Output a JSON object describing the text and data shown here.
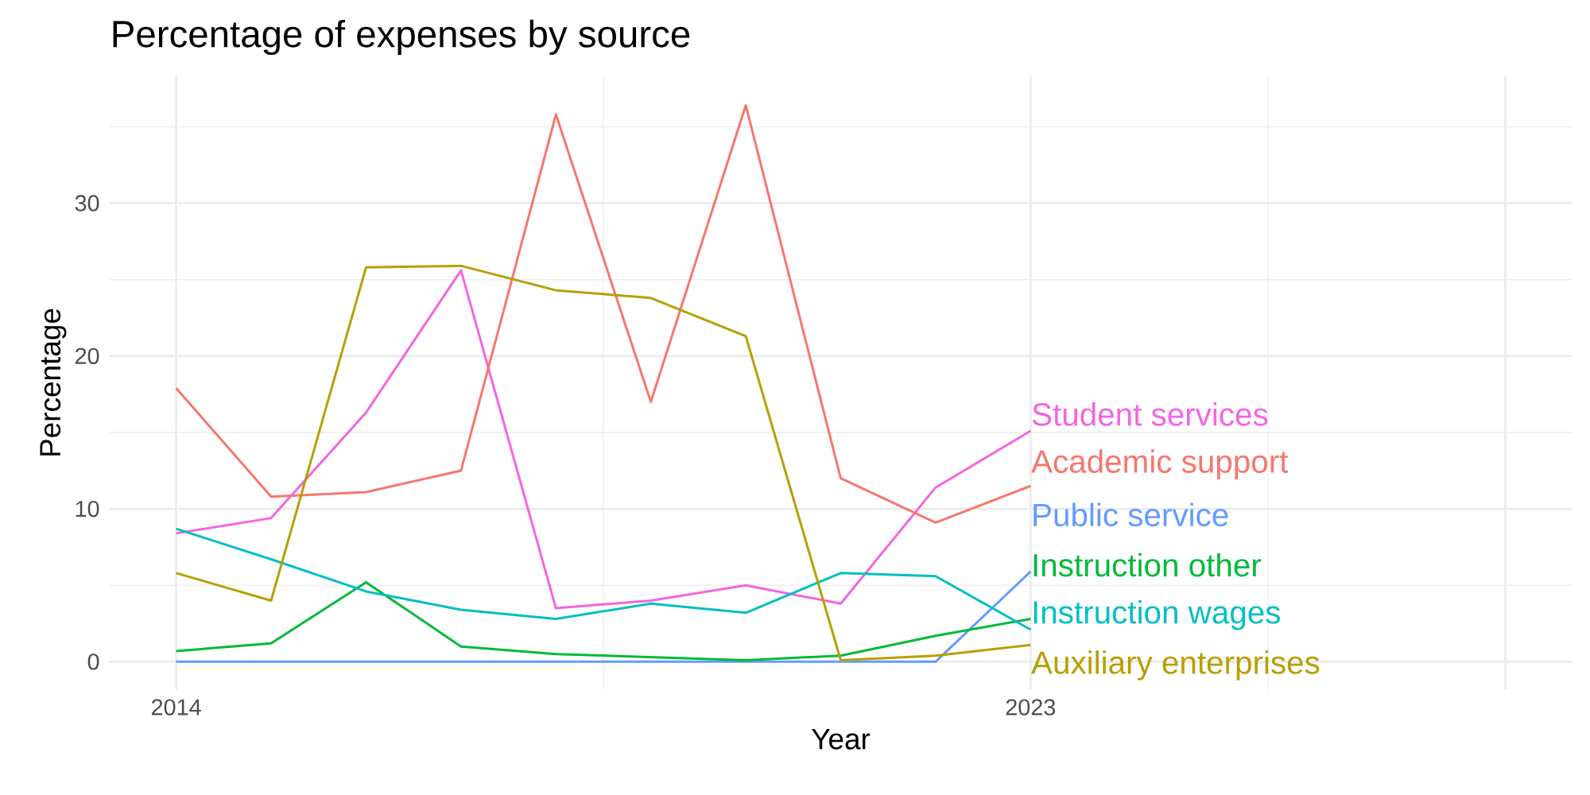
{
  "chart_data": {
    "type": "line",
    "title": "Percentage of expenses by source",
    "xlabel": "Year",
    "ylabel": "Percentage",
    "x": [
      2014,
      2015,
      2016,
      2017,
      2018,
      2019,
      2020,
      2021,
      2022,
      2023
    ],
    "series": [
      {
        "name": "Student services",
        "color": "#f564e3",
        "values": [
          8.4,
          9.4,
          16.3,
          25.6,
          3.5,
          4.0,
          5.0,
          3.8,
          11.4,
          15.1
        ]
      },
      {
        "name": "Academic support",
        "color": "#f8766d",
        "values": [
          17.9,
          10.8,
          11.1,
          12.5,
          35.8,
          17.0,
          36.4,
          12.0,
          9.1,
          11.5
        ]
      },
      {
        "name": "Public service",
        "color": "#619cff",
        "values": [
          0,
          0,
          0,
          0,
          0,
          0,
          0,
          0,
          0,
          5.9
        ]
      },
      {
        "name": "Instruction other",
        "color": "#00ba38",
        "values": [
          0.7,
          1.2,
          5.2,
          1.0,
          0.5,
          0.3,
          0.1,
          0.4,
          1.7,
          2.8
        ]
      },
      {
        "name": "Instruction wages",
        "color": "#00bfc4",
        "values": [
          8.7,
          6.7,
          4.6,
          3.4,
          2.8,
          3.8,
          3.2,
          5.8,
          5.6,
          2.1
        ]
      },
      {
        "name": "Auxiliary enterprises",
        "color": "#b79f00",
        "values": [
          5.8,
          4.0,
          25.8,
          25.9,
          24.3,
          23.8,
          21.3,
          0.1,
          0.4,
          1.1
        ]
      }
    ],
    "xlim": [
      2013.3,
      2028.7
    ],
    "ylim": [
      -1.8,
      38.3
    ],
    "xticks": [
      2014,
      2023,
      {
        "value": 2028,
        "label": null
      }
    ],
    "yticks": [
      0,
      10,
      20,
      30
    ],
    "grid": true,
    "legend": false,
    "marker": "none",
    "line_style": "solid"
  }
}
